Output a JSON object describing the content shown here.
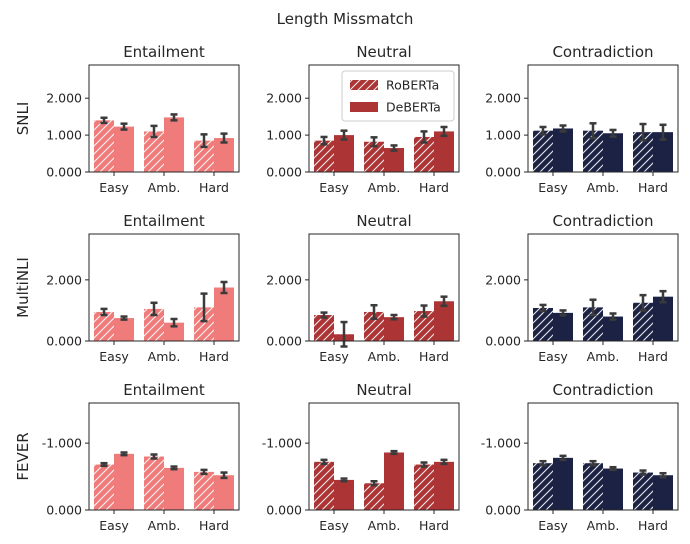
{
  "figure_title": "Length Missmatch",
  "legend": {
    "entries": [
      "RoBERTa",
      "DeBERTa"
    ]
  },
  "colors": {
    "entailment": "#f07b7b",
    "neutral": "#ad3434",
    "contradiction": "#1b2244",
    "errorbar": "#3b3b3b",
    "axis": "#262626"
  },
  "chart_data": [
    {
      "type": "bar",
      "dataset": "SNLI",
      "title": "Entailment",
      "ylabel": "SNLI",
      "categories": [
        "Easy",
        "Amb.",
        "Hard"
      ],
      "ylim": [
        0,
        2.9
      ],
      "yticks": [
        0,
        1,
        2
      ],
      "ytick_labels": [
        "0.000",
        "1.000",
        "2.000"
      ],
      "series": [
        {
          "name": "RoBERTa",
          "values": [
            1.4,
            1.1,
            0.85
          ],
          "errors": [
            0.07,
            0.15,
            0.17
          ]
        },
        {
          "name": "DeBERTa",
          "values": [
            1.23,
            1.48,
            0.92
          ],
          "errors": [
            0.08,
            0.08,
            0.12
          ]
        }
      ]
    },
    {
      "type": "bar",
      "dataset": "SNLI",
      "title": "Neutral",
      "categories": [
        "Easy",
        "Amb.",
        "Hard"
      ],
      "ylim": [
        0,
        2.9
      ],
      "yticks": [
        0,
        1,
        2
      ],
      "ytick_labels": [
        "0.000",
        "1.000",
        "2.000"
      ],
      "series": [
        {
          "name": "RoBERTa",
          "values": [
            0.85,
            0.82,
            0.95
          ],
          "errors": [
            0.1,
            0.12,
            0.15
          ]
        },
        {
          "name": "DeBERTa",
          "values": [
            1.0,
            0.65,
            1.1
          ],
          "errors": [
            0.12,
            0.07,
            0.12
          ]
        }
      ]
    },
    {
      "type": "bar",
      "dataset": "SNLI",
      "title": "Contradiction",
      "categories": [
        "Easy",
        "Amb.",
        "Hard"
      ],
      "ylim": [
        0,
        2.9
      ],
      "yticks": [
        0,
        1,
        2
      ],
      "ytick_labels": [
        "0.000",
        "1.000",
        "2.000"
      ],
      "series": [
        {
          "name": "RoBERTa",
          "values": [
            1.12,
            1.12,
            1.08
          ],
          "errors": [
            0.1,
            0.2,
            0.22
          ]
        },
        {
          "name": "DeBERTa",
          "values": [
            1.18,
            1.05,
            1.08
          ],
          "errors": [
            0.08,
            0.09,
            0.2
          ]
        }
      ]
    },
    {
      "type": "bar",
      "dataset": "MultiNLI",
      "title": "Entailment",
      "ylabel": "MultiNLI",
      "categories": [
        "Easy",
        "Amb.",
        "Hard"
      ],
      "ylim": [
        0,
        3.5
      ],
      "yticks": [
        0,
        2
      ],
      "ytick_labels": [
        "0.000",
        "2.000"
      ],
      "series": [
        {
          "name": "RoBERTa",
          "values": [
            0.95,
            1.05,
            1.1
          ],
          "errors": [
            0.1,
            0.2,
            0.45
          ]
        },
        {
          "name": "DeBERTa",
          "values": [
            0.75,
            0.6,
            1.75
          ],
          "errors": [
            0.05,
            0.12,
            0.18
          ]
        }
      ]
    },
    {
      "type": "bar",
      "dataset": "MultiNLI",
      "title": "Neutral",
      "categories": [
        "Easy",
        "Amb.",
        "Hard"
      ],
      "ylim": [
        0,
        3.5
      ],
      "yticks": [
        0,
        2
      ],
      "ytick_labels": [
        "0.000",
        "2.000"
      ],
      "series": [
        {
          "name": "RoBERTa",
          "values": [
            0.85,
            0.95,
            0.98
          ],
          "errors": [
            0.08,
            0.22,
            0.18
          ]
        },
        {
          "name": "DeBERTa",
          "values": [
            0.22,
            0.78,
            1.3
          ],
          "errors": [
            0.4,
            0.07,
            0.15
          ]
        }
      ]
    },
    {
      "type": "bar",
      "dataset": "MultiNLI",
      "title": "Contradiction",
      "categories": [
        "Easy",
        "Amb.",
        "Hard"
      ],
      "ylim": [
        0,
        3.5
      ],
      "yticks": [
        0,
        2
      ],
      "ytick_labels": [
        "0.000",
        "2.000"
      ],
      "series": [
        {
          "name": "RoBERTa",
          "values": [
            1.08,
            1.1,
            1.25
          ],
          "errors": [
            0.1,
            0.25,
            0.25
          ]
        },
        {
          "name": "DeBERTa",
          "values": [
            0.92,
            0.8,
            1.45
          ],
          "errors": [
            0.08,
            0.1,
            0.18
          ]
        }
      ]
    },
    {
      "type": "bar",
      "dataset": "FEVER",
      "title": "Entailment",
      "ylabel": "FEVER",
      "categories": [
        "Easy",
        "Amb.",
        "Hard"
      ],
      "ylim": [
        0,
        -1.6
      ],
      "yticks": [
        0,
        -1
      ],
      "ytick_labels": [
        "0.000",
        "-1.000"
      ],
      "series": [
        {
          "name": "RoBERTa",
          "values": [
            -0.68,
            -0.8,
            -0.57
          ],
          "errors": [
            0.02,
            0.03,
            0.03
          ]
        },
        {
          "name": "DeBERTa",
          "values": [
            -0.84,
            -0.63,
            -0.52
          ],
          "errors": [
            0.02,
            0.02,
            0.04
          ]
        }
      ]
    },
    {
      "type": "bar",
      "dataset": "FEVER",
      "title": "Neutral",
      "categories": [
        "Easy",
        "Amb.",
        "Hard"
      ],
      "ylim": [
        0,
        -1.6
      ],
      "yticks": [
        0,
        -1
      ],
      "ytick_labels": [
        "0.000",
        "-1.000"
      ],
      "series": [
        {
          "name": "RoBERTa",
          "values": [
            -0.72,
            -0.4,
            -0.68
          ],
          "errors": [
            0.03,
            0.03,
            0.03
          ]
        },
        {
          "name": "DeBERTa",
          "values": [
            -0.45,
            -0.86,
            -0.72
          ],
          "errors": [
            0.02,
            0.02,
            0.03
          ]
        }
      ]
    },
    {
      "type": "bar",
      "dataset": "FEVER",
      "title": "Contradiction",
      "categories": [
        "Easy",
        "Amb.",
        "Hard"
      ],
      "ylim": [
        0,
        -1.6
      ],
      "yticks": [
        0,
        -1
      ],
      "ytick_labels": [
        "0.000",
        "-1.000"
      ],
      "series": [
        {
          "name": "RoBERTa",
          "values": [
            -0.7,
            -0.7,
            -0.56
          ],
          "errors": [
            0.03,
            0.03,
            0.03
          ]
        },
        {
          "name": "DeBERTa",
          "values": [
            -0.78,
            -0.62,
            -0.52
          ],
          "errors": [
            0.03,
            0.02,
            0.03
          ]
        }
      ]
    }
  ]
}
